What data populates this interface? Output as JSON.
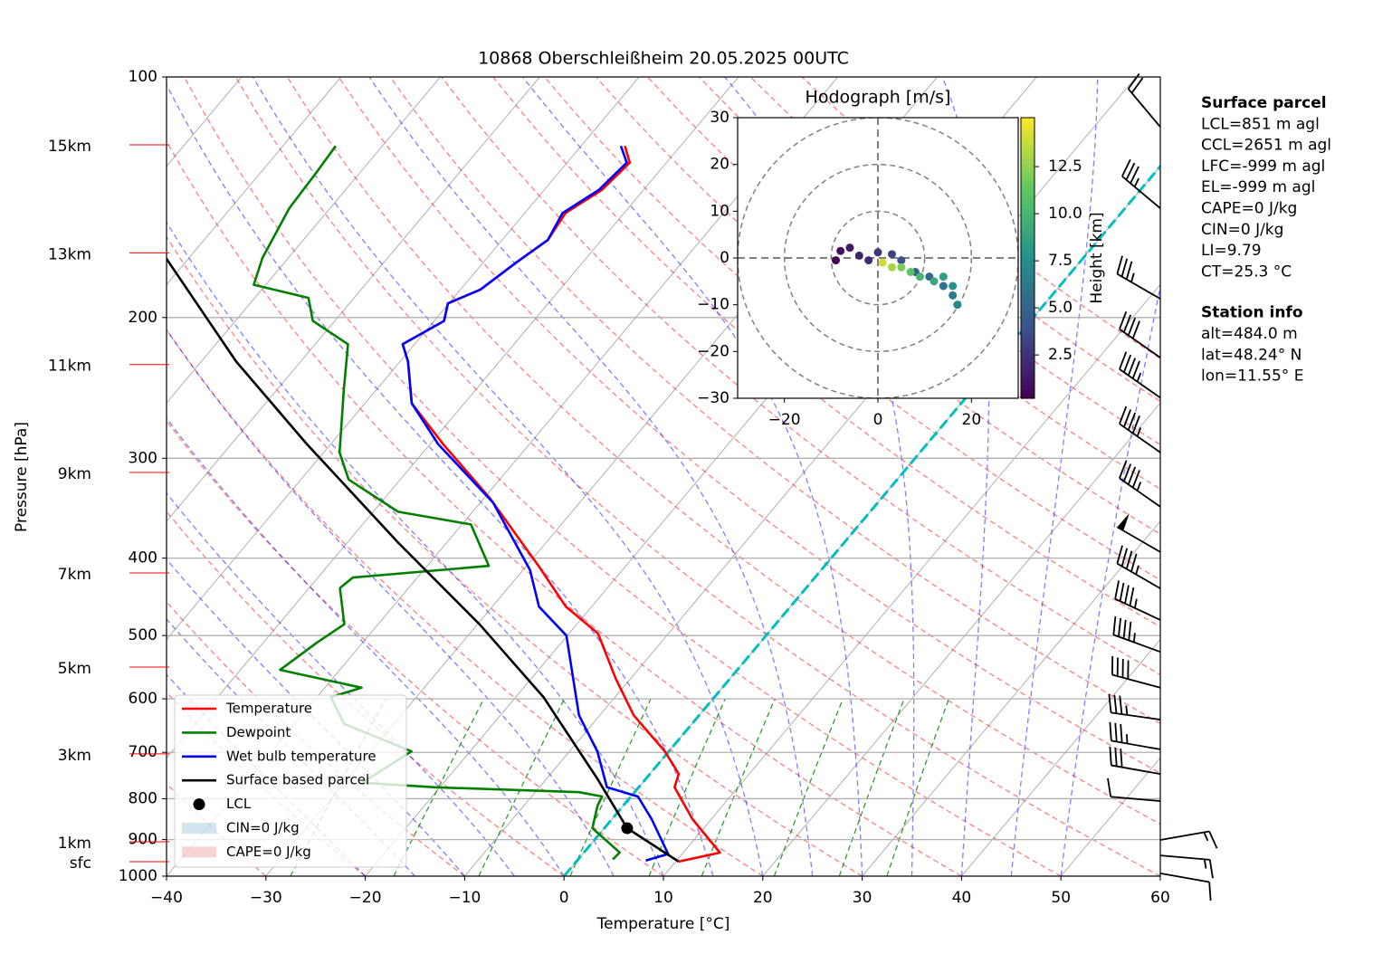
{
  "chart_data": [
    {
      "type": "skewt",
      "title": "10868 Oberschleißheim 20.05.2025 00UTC",
      "xlabel": "Temperature [°C]",
      "ylabel": "Pressure [hPa]",
      "xlim": [
        -40,
        60
      ],
      "xticks": [
        {
          "value": -40,
          "label": "−40"
        },
        {
          "value": -30,
          "label": "−30"
        },
        {
          "value": -20,
          "label": "−20"
        },
        {
          "value": -10,
          "label": "−10"
        },
        0,
        10,
        20,
        30,
        40,
        50,
        60
      ],
      "ylim": [
        1000,
        100
      ],
      "yticks": [
        100,
        200,
        300,
        400,
        500,
        600,
        700,
        800,
        900,
        1000
      ],
      "log_scale_y": true,
      "grid": true,
      "legend": "lower left",
      "series": [
        {
          "name": "Temperature",
          "color": "#ff0000",
          "pressure": [
            959,
            934.5,
            848.5,
            774,
            745,
            698,
            629,
            566,
            497,
            460,
            409,
            336,
            288,
            256,
            227,
            216,
            202,
            192,
            184.5,
            171,
            160,
            148,
            138.5,
            128,
            122
          ],
          "values": [
            10.3,
            13.7,
            8.1,
            3.6,
            2.9,
            -0.4,
            -6.6,
            -11.5,
            -17.1,
            -22.6,
            -28.8,
            -39.5,
            -48.7,
            -55.3,
            -59.2,
            -61.2,
            -59,
            -60.1,
            -58,
            -56.7,
            -55.4,
            -55.9,
            -54.2,
            -53.7,
            -55.6
          ]
        },
        {
          "name": "Dewpoint",
          "color": "#008000",
          "pressure": [
            953,
            934,
            871,
            816,
            795,
            785,
            774,
            764,
            698,
            645,
            597,
            581,
            552,
            510,
            484,
            436,
            423,
            409,
            363,
            350,
            319,
            295,
            246,
            216,
            202,
            189,
            182,
            168.5,
            146,
            131.5,
            122
          ],
          "values": [
            3.5,
            3.6,
            -1.2,
            -2.6,
            -2.9,
            -5.6,
            -20.5,
            -28.2,
            -25.9,
            -35,
            -38.6,
            -36.3,
            -46,
            -44.6,
            -43.4,
            -46.9,
            -46.5,
            -33.8,
            -39.1,
            -47.5,
            -55.2,
            -58.4,
            -63.3,
            -66.7,
            -72.2,
            -74.6,
            -81.2,
            -82.6,
            -84.1,
            -84.4,
            -84.7
          ]
        },
        {
          "name": "Wet bulb temperature",
          "color": "#0000ff",
          "pressure": [
            956,
            938,
            848.5,
            795,
            774,
            698,
            629,
            500,
            460,
            414,
            341,
            288,
            256,
            227,
            216,
            202,
            192,
            184.5,
            171,
            160,
            148,
            138.5,
            128,
            122
          ],
          "values": [
            6.9,
            8.6,
            4.0,
            0.7,
            -3.2,
            -7.2,
            -12.1,
            -20.1,
            -25.3,
            -29.3,
            -38.7,
            -49.2,
            -55.3,
            -59.2,
            -61.2,
            -59,
            -60.1,
            -58,
            -56.7,
            -55.4,
            -56.2,
            -54.5,
            -54,
            -56
          ]
        },
        {
          "name": "Surface based parcel",
          "color": "#000000",
          "pressure": [
            959,
            871,
            755,
            597,
            484,
            383,
            288,
            227,
            168.5
          ],
          "values": [
            10.3,
            2.3,
            -4.9,
            -17.2,
            -29.8,
            -44.8,
            -62.4,
            -76.5,
            -92.3
          ]
        }
      ],
      "lcl": {
        "name": "LCL",
        "pressure": 871,
        "temperature": 2.3,
        "color": "#000000"
      },
      "patches": [
        {
          "name": "CIN=0 J/kg",
          "color": "#1f77b4"
        },
        {
          "name": "CAPE=0 J/kg",
          "color": "#d62728"
        }
      ],
      "freezing_line": {
        "value": 0,
        "color": "#00bfbf"
      },
      "height_labels": [
        {
          "value": 121.6,
          "label": "15km"
        },
        {
          "value": 166,
          "label": "13km"
        },
        {
          "value": 229,
          "label": "11km"
        },
        {
          "value": 312.5,
          "label": "9km"
        },
        {
          "value": 417.5,
          "label": "7km"
        },
        {
          "value": 547.5,
          "label": "5km"
        },
        {
          "value": 703,
          "label": "3km"
        },
        {
          "value": 905.7,
          "label": "1km"
        },
        {
          "value": 959,
          "label": "sfc"
        }
      ],
      "barbs": {
        "pressure": [
          992,
          942,
          901,
          805.5,
          745,
          694,
          637,
          581,
          524,
          478,
          436.5,
          393,
          345,
          295,
          252,
          224.5,
          189.5,
          146,
          115.5
        ],
        "speed": [
          10,
          15,
          15,
          10,
          30,
          35,
          35,
          40,
          45,
          45,
          45,
          50,
          45,
          45,
          45,
          40,
          35,
          35,
          20
        ],
        "direction": [
          100,
          95,
          80,
          275,
          280,
          280,
          278,
          285,
          290,
          295,
          300,
          300,
          305,
          305,
          305,
          305,
          300,
          310,
          320
        ]
      },
      "info": [
        {
          "title": "Surface parcel",
          "lines": [
            "LCL=851 m agl",
            "CCL=2651 m agl",
            "LFC=-999 m agl",
            "EL=-999 m agl",
            "CAPE=0 J/kg",
            "CIN=0 J/kg",
            "LI=9.79",
            "CT=25.3 °C"
          ]
        },
        {
          "title": "Station info",
          "lines": [
            "alt=484.0 m",
            "lat=48.24° N",
            "lon=11.55° E"
          ]
        }
      ]
    },
    {
      "type": "hodograph",
      "title": "Hodograph [m/s]",
      "xlim": [
        -30,
        30
      ],
      "ylim": [
        -30,
        30
      ],
      "xticks": [
        {
          "value": -20,
          "label": "−20"
        },
        0,
        20
      ],
      "yticks": [
        {
          "value": -30,
          "label": "−30"
        },
        {
          "value": -20,
          "label": "−20"
        },
        {
          "value": -10,
          "label": "−10"
        },
        0,
        10,
        20,
        30
      ],
      "rings": [
        10,
        20,
        30
      ],
      "u": [
        -9,
        -8,
        -6,
        -4,
        -2,
        0,
        3,
        5,
        8,
        11,
        14,
        16,
        17,
        16,
        14,
        12,
        9,
        7,
        5,
        3,
        1
      ],
      "v": [
        -0.5,
        1.5,
        2.2,
        0.5,
        -0.5,
        1.2,
        0.8,
        -0.5,
        -3,
        -4,
        -6,
        -8,
        -10,
        -6,
        -4,
        -5,
        -4,
        -3,
        -2,
        -2,
        -1
      ],
      "height": [
        0.3,
        0.8,
        1.3,
        1.8,
        2.2,
        2.7,
        3.2,
        3.8,
        4.5,
        5.2,
        5.8,
        6.5,
        7.2,
        7.8,
        8.5,
        9.2,
        10.0,
        11.0,
        12.0,
        13.0,
        14.0
      ],
      "colormap": "viridis",
      "colorbar_label": "Height [km]",
      "clim": [
        0.2,
        15.1
      ],
      "cticks": [
        2.5,
        {
          "value": 5,
          "label": "5.0"
        },
        7.5,
        {
          "value": 10,
          "label": "10.0"
        },
        12.5
      ]
    }
  ]
}
